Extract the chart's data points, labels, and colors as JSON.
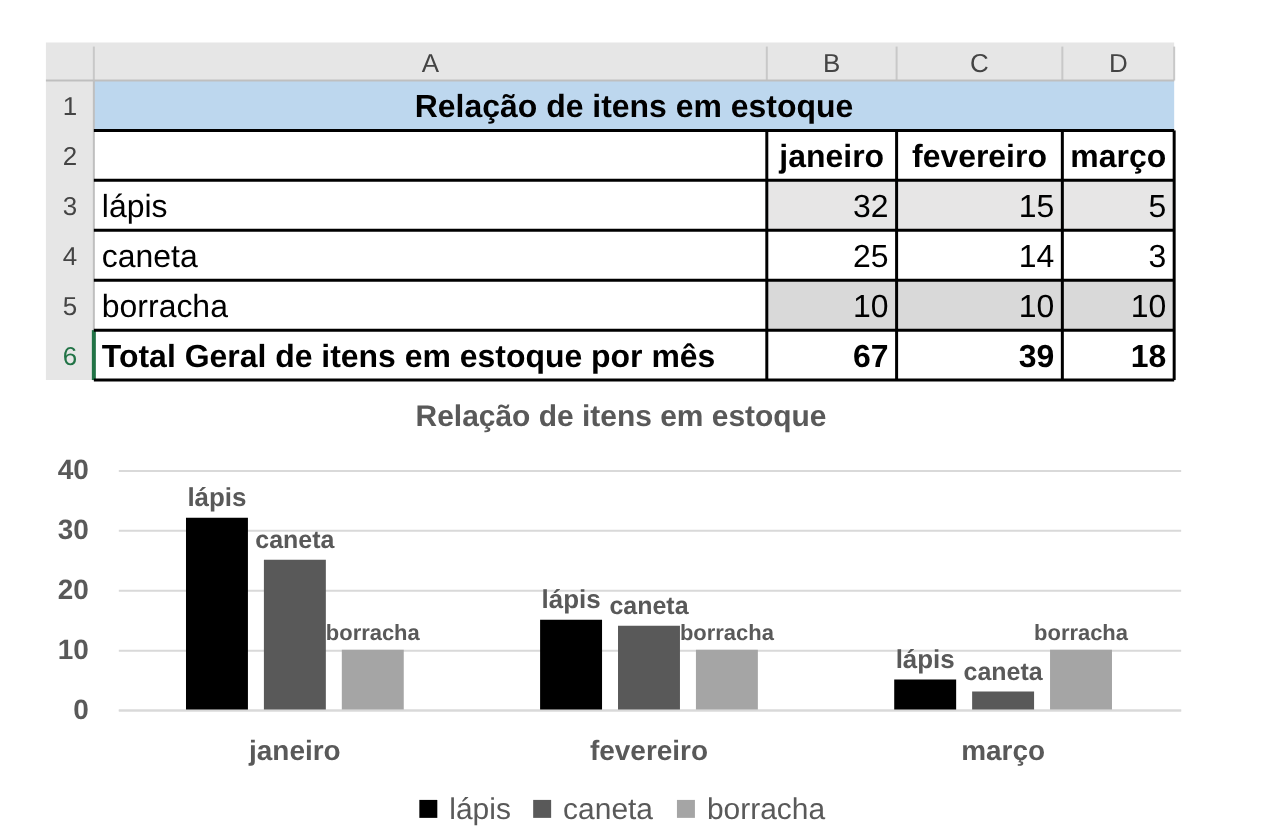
{
  "chart_data": [
    {
      "type": "heatmap",
      "title": "Relação de itens em estoque",
      "categories": [
        "janeiro",
        "fevereiro",
        "março"
      ],
      "y_categories": [
        "lápis",
        "caneta",
        "borracha",
        "Total Geral de itens em estoque por mês"
      ],
      "cells": [
        [
          32,
          15,
          5
        ],
        [
          25,
          14,
          3
        ],
        [
          10,
          10,
          10
        ],
        [
          67,
          39,
          18
        ]
      ],
      "data_labels": true,
      "annotations": [
        "A",
        "B",
        "C",
        "D",
        "1",
        "2",
        "3",
        "4",
        "5",
        "6"
      ]
    },
    {
      "type": "bar",
      "title": "Relação de itens em estoque",
      "categories": [
        "janeiro",
        "fevereiro",
        "março"
      ],
      "series": [
        {
          "name": "lápis",
          "color": "#000000",
          "values": [
            32,
            15,
            5
          ],
          "value_labels": [
            "lápis",
            "lápis",
            "lápis"
          ]
        },
        {
          "name": "caneta",
          "color": "#595959",
          "values": [
            25,
            14,
            3
          ],
          "value_labels": [
            "caneta",
            "caneta",
            "caneta"
          ]
        },
        {
          "name": "borracha",
          "color": "#a5a5a5",
          "values": [
            10,
            10,
            10
          ],
          "value_labels": [
            "borracha",
            "borracha",
            "borracha"
          ]
        }
      ],
      "ylim": [
        0,
        40
      ],
      "yticks": [
        0,
        10,
        20,
        30,
        40
      ],
      "grid": "y",
      "legend": "bottom"
    }
  ]
}
